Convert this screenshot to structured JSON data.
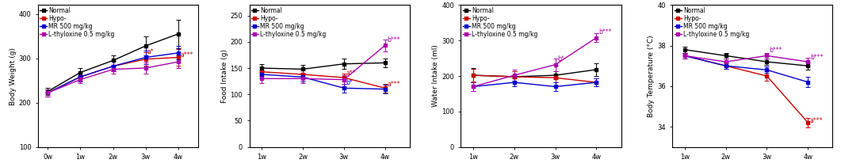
{
  "chart_data": [
    {
      "type": "line",
      "y_label": "Body Weight (g)",
      "categories": [
        "0w",
        "1w",
        "2w",
        "3w",
        "4w"
      ],
      "ylim": [
        100,
        420
      ],
      "yticks": [
        100,
        200,
        300,
        400
      ],
      "marker": "square",
      "legend": "upper left",
      "series": [
        {
          "name": "Normal",
          "color": "#000000",
          "values": [
            225,
            268,
            295,
            328,
            355
          ],
          "errors": [
            8,
            10,
            12,
            22,
            32
          ]
        },
        {
          "name": "Hypo-",
          "color": "#cc0000",
          "values": [
            222,
            258,
            282,
            298,
            302
          ],
          "errors": [
            8,
            10,
            12,
            15,
            18
          ]
        },
        {
          "name": "MR 500 mg/kg",
          "color": "#0000cc",
          "values": [
            222,
            258,
            282,
            302,
            312
          ],
          "errors": [
            8,
            10,
            12,
            15,
            15
          ]
        },
        {
          "name": "L-thyloxine 0.5 mg/kg",
          "color": "#aa00aa",
          "values": [
            222,
            252,
            275,
            278,
            292
          ],
          "errors": [
            8,
            8,
            10,
            12,
            15
          ]
        }
      ],
      "annotations": [
        {
          "text": "a*",
          "x": "3w",
          "y": 306,
          "color": "#cc0000"
        },
        {
          "text": "a***",
          "x": "4w",
          "y": 300,
          "color": "#cc0000"
        }
      ]
    },
    {
      "type": "line",
      "y_label": "Food Intake (g)",
      "categories": [
        "1w",
        "2w",
        "3w",
        "4w"
      ],
      "ylim": [
        0,
        270
      ],
      "yticks": [
        0,
        50,
        100,
        150,
        200,
        250
      ],
      "marker": "square",
      "legend": "upper left",
      "series": [
        {
          "name": "Normal",
          "color": "#000000",
          "values": [
            150,
            148,
            158,
            160
          ],
          "errors": [
            8,
            8,
            10,
            8
          ]
        },
        {
          "name": "Hypo-",
          "color": "#cc0000",
          "values": [
            143,
            138,
            132,
            112
          ],
          "errors": [
            8,
            8,
            8,
            8
          ]
        },
        {
          "name": "MR 500 mg/kg",
          "color": "#0000cc",
          "values": [
            138,
            133,
            112,
            110
          ],
          "errors": [
            8,
            8,
            8,
            8
          ]
        },
        {
          "name": "L-thyloxine 0.5 mg/kg",
          "color": "#aa00aa",
          "values": [
            130,
            130,
            128,
            193
          ],
          "errors": [
            8,
            8,
            8,
            12
          ]
        }
      ],
      "annotations": [
        {
          "text": "a**",
          "x": "3w",
          "y": 133,
          "color": "#cc0000"
        },
        {
          "text": "b*",
          "x": "3w",
          "y": 115,
          "color": "#0000cc"
        },
        {
          "text": "a***",
          "x": "4w",
          "y": 112,
          "color": "#cc0000"
        },
        {
          "text": "b***",
          "x": "4w",
          "y": 196,
          "color": "#aa00aa"
        }
      ]
    },
    {
      "type": "line",
      "y_label": "Water Intake (ml)",
      "categories": [
        "1w",
        "2w",
        "3w",
        "4w"
      ],
      "ylim": [
        0,
        400
      ],
      "yticks": [
        0,
        100,
        200,
        300,
        400
      ],
      "marker": "square",
      "legend": "upper left",
      "series": [
        {
          "name": "Normal",
          "color": "#000000",
          "values": [
            202,
            198,
            202,
            218
          ],
          "errors": [
            20,
            15,
            12,
            18
          ]
        },
        {
          "name": "Hypo-",
          "color": "#cc0000",
          "values": [
            202,
            198,
            195,
            182
          ],
          "errors": [
            18,
            15,
            12,
            12
          ]
        },
        {
          "name": "MR 500 mg/kg",
          "color": "#0000cc",
          "values": [
            170,
            182,
            170,
            182
          ],
          "errors": [
            12,
            12,
            12,
            12
          ]
        },
        {
          "name": "L-thyloxine 0.5 mg/kg",
          "color": "#aa00aa",
          "values": [
            170,
            202,
            232,
            308
          ],
          "errors": [
            12,
            15,
            18,
            12
          ]
        }
      ],
      "annotations": [
        {
          "text": "b*",
          "x": "3w",
          "y": 238,
          "color": "#aa00aa"
        },
        {
          "text": "b***",
          "x": "4w",
          "y": 313,
          "color": "#aa00aa"
        }
      ]
    },
    {
      "type": "line",
      "y_label": "Body Temperature (°C)",
      "categories": [
        "1w",
        "2w",
        "3w",
        "4w"
      ],
      "ylim": [
        33,
        40
      ],
      "yticks": [
        34,
        36,
        38,
        40
      ],
      "marker": "square",
      "legend": "upper left",
      "series": [
        {
          "name": "Normal",
          "color": "#000000",
          "values": [
            37.8,
            37.5,
            37.2,
            37.0
          ],
          "errors": [
            0.15,
            0.15,
            0.15,
            0.18
          ]
        },
        {
          "name": "Hypo-",
          "color": "#cc0000",
          "values": [
            37.5,
            37.0,
            36.5,
            34.2
          ],
          "errors": [
            0.15,
            0.15,
            0.25,
            0.25
          ]
        },
        {
          "name": "MR 500 mg/kg",
          "color": "#0000cc",
          "values": [
            37.5,
            37.0,
            36.8,
            36.2
          ],
          "errors": [
            0.15,
            0.15,
            0.15,
            0.25
          ]
        },
        {
          "name": "L-thyloxine 0.5 mg/kg",
          "color": "#aa00aa",
          "values": [
            37.5,
            37.2,
            37.5,
            37.2
          ],
          "errors": [
            0.15,
            0.15,
            0.15,
            0.18
          ]
        }
      ],
      "annotations": [
        {
          "text": "b***",
          "x": "3w",
          "y": 37.58,
          "color": "#aa00aa"
        },
        {
          "text": "a***",
          "x": "4w",
          "y": 34.1,
          "color": "#cc0000"
        },
        {
          "text": "b***",
          "x": "4w",
          "y": 37.25,
          "color": "#aa00aa"
        }
      ]
    }
  ]
}
